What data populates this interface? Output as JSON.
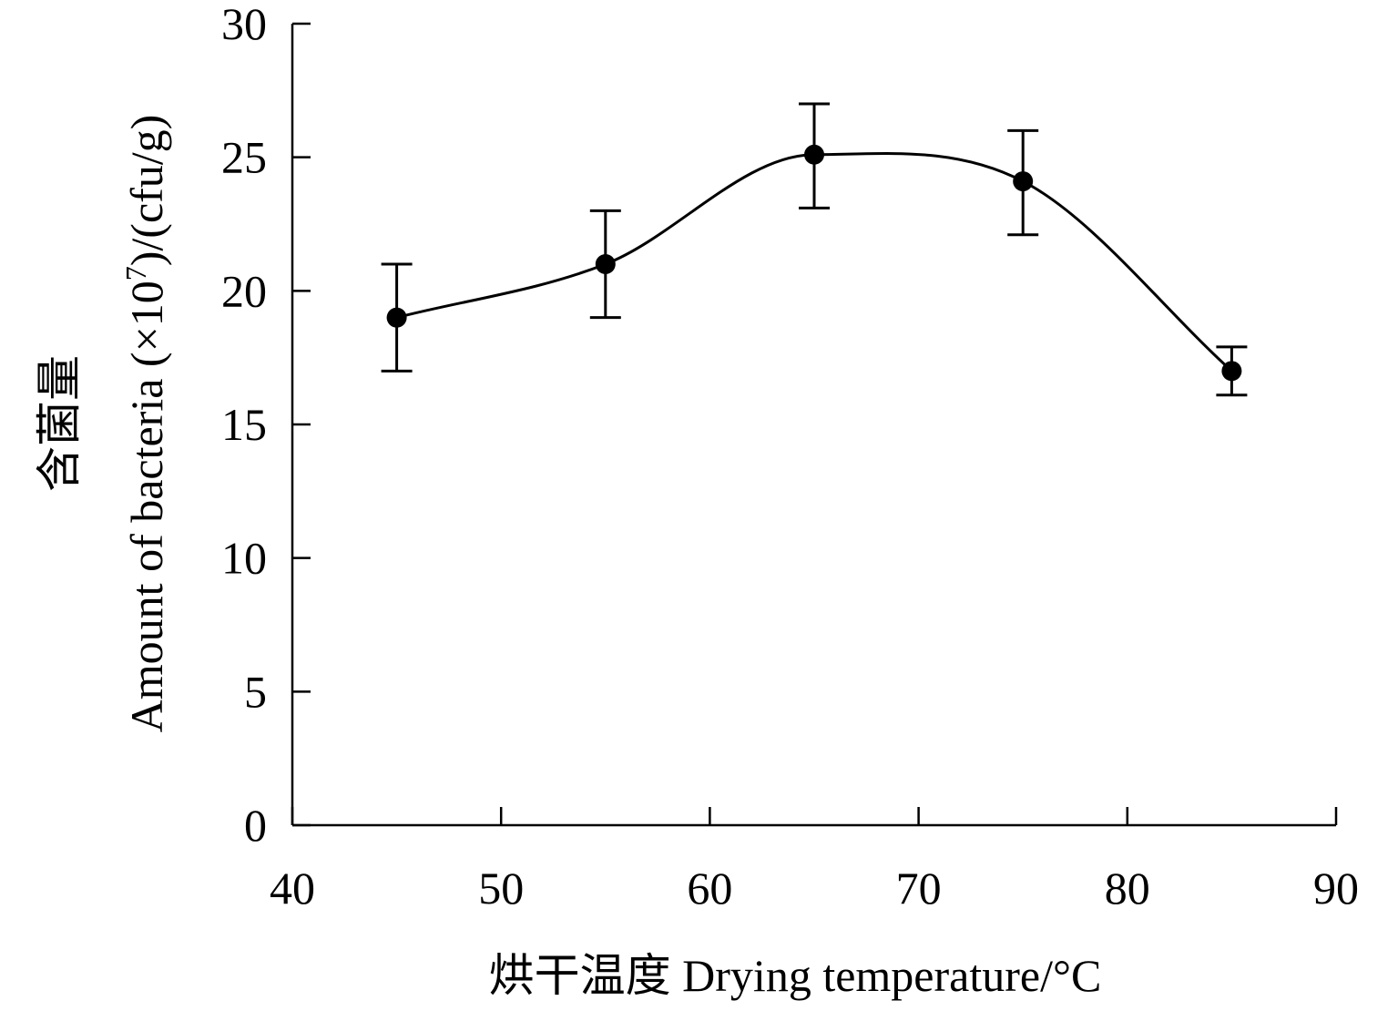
{
  "chart_data": {
    "type": "line",
    "title": "",
    "xlabel": "烘干温度 Drying temperature/°C",
    "ylabel": {
      "cn": "含菌量",
      "en_before_sup": "Amount of bacteria (×10",
      "sup": "7",
      "en_after_sup": ")/(cfu/g)"
    },
    "xlim": [
      40,
      90
    ],
    "ylim": [
      0,
      30
    ],
    "xticks": [
      40,
      50,
      60,
      70,
      80,
      90
    ],
    "yticks": [
      0,
      5,
      10,
      15,
      20,
      25,
      30
    ],
    "grid": false,
    "smooth": true,
    "series": [
      {
        "x": [
          45,
          55,
          65,
          75,
          85
        ],
        "y": [
          19,
          21,
          25.1,
          24.1,
          17
        ],
        "yerr_low": [
          17,
          19,
          23.1,
          22.1,
          16.1
        ],
        "yerr_high": [
          21,
          23,
          27,
          26,
          17.9
        ],
        "color": "#000000",
        "marker": "filled-circle"
      }
    ]
  }
}
